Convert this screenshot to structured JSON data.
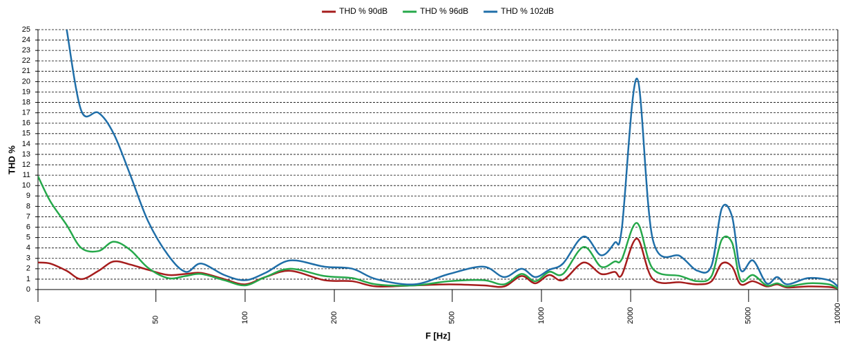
{
  "chart_data": {
    "type": "line",
    "xlabel": "F [Hz]",
    "ylabel": "THD %",
    "x": [
      20,
      22,
      25,
      28,
      32,
      36,
      41,
      47,
      55,
      63,
      71,
      85,
      100,
      117,
      142,
      185,
      230,
      277,
      372,
      488,
      637,
      748,
      857,
      953,
      1062,
      1182,
      1388,
      1588,
      1766,
      1866,
      2100,
      2376,
      2944,
      3366,
      3750,
      4060,
      4400,
      4700,
      5170,
      5750,
      6240,
      6760,
      7940,
      9330,
      10000
    ],
    "series": [
      {
        "name": "THD % 90dB",
        "color": "#a51c1c",
        "values": [
          2.6,
          2.5,
          1.8,
          1.0,
          1.8,
          2.7,
          2.4,
          1.9,
          1.4,
          1.5,
          1.6,
          1.0,
          0.5,
          1.2,
          1.8,
          0.9,
          0.8,
          0.3,
          0.4,
          0.5,
          0.4,
          0.3,
          1.3,
          0.6,
          1.4,
          0.9,
          2.6,
          1.5,
          1.7,
          1.4,
          4.9,
          1.0,
          0.7,
          0.5,
          0.8,
          2.5,
          2.2,
          0.5,
          0.8,
          0.3,
          0.5,
          0.2,
          0.3,
          0.25,
          0.1
        ]
      },
      {
        "name": "THD % 96dB",
        "color": "#25a84a",
        "values": [
          10.9,
          8.5,
          6.2,
          4.0,
          3.7,
          4.6,
          3.8,
          2.1,
          1.1,
          1.3,
          1.5,
          0.9,
          0.4,
          1.2,
          2.0,
          1.3,
          1.1,
          0.5,
          0.4,
          0.8,
          0.9,
          0.5,
          1.5,
          0.8,
          1.7,
          1.5,
          4.1,
          2.2,
          2.7,
          2.9,
          6.4,
          2.0,
          1.3,
          0.8,
          1.3,
          4.8,
          4.5,
          0.9,
          1.4,
          0.4,
          0.6,
          0.3,
          0.6,
          0.5,
          0.1
        ]
      },
      {
        "name": "THD % 102dB",
        "color": "#1f6ea8",
        "values": [
          null,
          null,
          25,
          17.2,
          17.0,
          15.0,
          11.0,
          6.6,
          3.3,
          1.7,
          2.5,
          1.4,
          0.9,
          1.6,
          2.8,
          2.2,
          2.0,
          1.0,
          0.5,
          1.5,
          2.2,
          1.2,
          2.0,
          1.2,
          1.9,
          2.5,
          5.1,
          3.3,
          4.5,
          5.8,
          20.3,
          4.8,
          3.2,
          1.8,
          2.3,
          7.8,
          7.0,
          1.9,
          2.8,
          0.6,
          1.2,
          0.5,
          1.1,
          0.9,
          0.3
        ]
      }
    ],
    "xscale": "log",
    "xlim": [
      20,
      10000
    ],
    "xticks": [
      20,
      50,
      100,
      200,
      500,
      1000,
      2000,
      5000,
      10000
    ],
    "ylim": [
      0,
      25
    ],
    "yticks": [
      0,
      1,
      2,
      3,
      4,
      5,
      6,
      7,
      8,
      9,
      10,
      11,
      12,
      13,
      14,
      15,
      16,
      17,
      18,
      19,
      20,
      21,
      22,
      23,
      24,
      25
    ],
    "grid": true,
    "legend": "top"
  }
}
